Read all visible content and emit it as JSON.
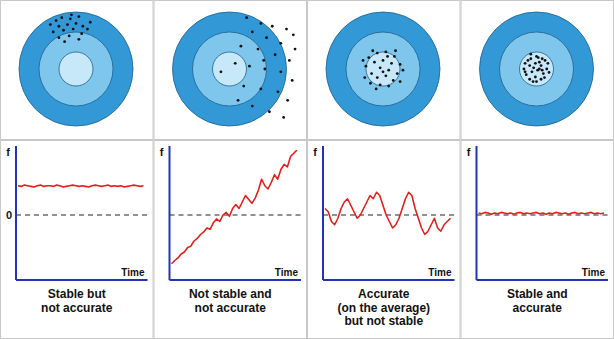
{
  "targets": [
    {
      "points": [
        [
          -0.35,
          0.85
        ],
        [
          -0.25,
          0.9
        ],
        [
          -0.1,
          0.88
        ],
        [
          0.05,
          0.92
        ],
        [
          -0.3,
          0.75
        ],
        [
          -0.15,
          0.78
        ],
        [
          0.0,
          0.8
        ],
        [
          0.12,
          0.75
        ],
        [
          -0.4,
          0.65
        ],
        [
          -0.22,
          0.68
        ],
        [
          -0.05,
          0.7
        ],
        [
          0.1,
          0.62
        ],
        [
          -0.3,
          0.55
        ],
        [
          -0.12,
          0.58
        ],
        [
          0.2,
          0.7
        ],
        [
          -0.2,
          0.48
        ],
        [
          0.05,
          0.52
        ],
        [
          -0.45,
          0.78
        ],
        [
          0.25,
          0.82
        ],
        [
          -0.08,
          0.95
        ]
      ]
    },
    {
      "points": [
        [
          0.3,
          0.9
        ],
        [
          0.55,
          0.8
        ],
        [
          0.75,
          0.75
        ],
        [
          1.0,
          0.7
        ],
        [
          1.12,
          0.6
        ],
        [
          0.4,
          0.65
        ],
        [
          0.65,
          0.55
        ],
        [
          0.9,
          0.45
        ],
        [
          1.15,
          0.35
        ],
        [
          0.2,
          0.4
        ],
        [
          0.5,
          0.35
        ],
        [
          0.8,
          0.25
        ],
        [
          1.05,
          0.15
        ],
        [
          0.1,
          0.1
        ],
        [
          0.35,
          0.05
        ],
        [
          0.62,
          0.0
        ],
        [
          0.9,
          -0.05
        ],
        [
          1.1,
          -0.2
        ],
        [
          -0.15,
          -0.05
        ],
        [
          0.25,
          -0.3
        ],
        [
          0.55,
          -0.35
        ],
        [
          0.85,
          -0.4
        ],
        [
          1.02,
          -0.55
        ],
        [
          0.4,
          -0.65
        ],
        [
          0.7,
          -0.75
        ],
        [
          0.95,
          -0.85
        ],
        [
          0.15,
          -0.55
        ],
        [
          0.6,
          0.15
        ]
      ]
    },
    {
      "points": [
        [
          -0.25,
          0.2
        ],
        [
          -0.1,
          0.28
        ],
        [
          0.05,
          0.3
        ],
        [
          0.2,
          0.22
        ],
        [
          0.3,
          0.08
        ],
        [
          -0.3,
          0.05
        ],
        [
          -0.15,
          0.12
        ],
        [
          0.0,
          0.15
        ],
        [
          0.15,
          0.1
        ],
        [
          -0.05,
          0.02
        ],
        [
          0.1,
          -0.02
        ],
        [
          0.25,
          -0.08
        ],
        [
          -0.2,
          -0.08
        ],
        [
          -0.32,
          -0.15
        ],
        [
          -0.1,
          -0.15
        ],
        [
          0.05,
          -0.12
        ],
        [
          0.18,
          -0.2
        ],
        [
          -0.22,
          -0.25
        ],
        [
          -0.05,
          -0.28
        ],
        [
          0.1,
          -0.3
        ],
        [
          0.3,
          -0.22
        ],
        [
          0.22,
          0.32
        ],
        [
          -0.18,
          0.32
        ],
        [
          0.35,
          -0.02
        ],
        [
          -0.35,
          0.15
        ],
        [
          0.0,
          -0.05
        ],
        [
          -0.12,
          -0.35
        ],
        [
          0.08,
          0.22
        ]
      ]
    },
    {
      "points": [
        [
          -0.2,
          0.1
        ],
        [
          -0.1,
          0.18
        ],
        [
          0.0,
          0.22
        ],
        [
          0.1,
          0.18
        ],
        [
          0.2,
          0.1
        ],
        [
          -0.22,
          0.0
        ],
        [
          -0.12,
          0.06
        ],
        [
          -0.02,
          0.1
        ],
        [
          0.08,
          0.06
        ],
        [
          0.18,
          0.0
        ],
        [
          -0.18,
          -0.1
        ],
        [
          -0.08,
          -0.05
        ],
        [
          0.02,
          -0.02
        ],
        [
          0.12,
          -0.08
        ],
        [
          0.22,
          -0.06
        ],
        [
          -0.12,
          -0.18
        ],
        [
          -0.02,
          -0.14
        ],
        [
          0.08,
          -0.18
        ],
        [
          0.0,
          -0.22
        ],
        [
          -0.05,
          0.02
        ],
        [
          0.05,
          0.12
        ],
        [
          0.14,
          -0.15
        ],
        [
          -0.15,
          0.15
        ],
        [
          0.15,
          0.15
        ],
        [
          -0.06,
          -0.22
        ],
        [
          0.05,
          0.0
        ],
        [
          -0.2,
          -0.05
        ],
        [
          0.1,
          -0.02
        ],
        [
          -0.1,
          0.26
        ],
        [
          0.03,
          0.2
        ]
      ]
    }
  ],
  "chart_data": [
    {
      "type": "line",
      "title": "Stable but\nnot accurate",
      "x_label": "Time",
      "y_label": "f",
      "color": "#e3201b",
      "ylim": [
        -1,
        1
      ],
      "yticks": [
        0
      ],
      "grid": true,
      "tick_labels": "y",
      "values": [
        0.45,
        0.44,
        0.46,
        0.45,
        0.44,
        0.43,
        0.45,
        0.46,
        0.44,
        0.45,
        0.45,
        0.44,
        0.46,
        0.45,
        0.43,
        0.44,
        0.45,
        0.46,
        0.45,
        0.44,
        0.45,
        0.44,
        0.43,
        0.45,
        0.46,
        0.45,
        0.44,
        0.45,
        0.46,
        0.44,
        0.45,
        0.44,
        0.45,
        0.43,
        0.44,
        0.45,
        0.46,
        0.45,
        0.44,
        0.45
      ]
    },
    {
      "type": "line",
      "title": "Not stable and\nnot accurate",
      "x_label": "Time",
      "y_label": "f",
      "color": "#e3201b",
      "ylim": [
        -1,
        1
      ],
      "yticks": [
        0
      ],
      "grid": true,
      "tick_labels": false,
      "values": [
        -0.75,
        -0.7,
        -0.66,
        -0.6,
        -0.57,
        -0.5,
        -0.48,
        -0.4,
        -0.36,
        -0.3,
        -0.26,
        -0.2,
        -0.22,
        -0.12,
        -0.06,
        -0.1,
        0.0,
        0.04,
        -0.02,
        0.1,
        0.16,
        0.1,
        0.2,
        0.3,
        0.24,
        0.18,
        0.26,
        0.38,
        0.55,
        0.45,
        0.4,
        0.5,
        0.62,
        0.55,
        0.7,
        0.78,
        0.74,
        0.9,
        0.95,
        1.0
      ]
    },
    {
      "type": "line",
      "title": "Accurate\n(on the average)\nbut not stable",
      "x_label": "Time",
      "y_label": "f",
      "color": "#e3201b",
      "ylim": [
        -1,
        1
      ],
      "yticks": [
        0
      ],
      "grid": true,
      "tick_labels": false,
      "values": [
        0.1,
        0.05,
        -0.1,
        -0.15,
        -0.05,
        0.1,
        0.2,
        0.25,
        0.15,
        0.05,
        -0.05,
        0.0,
        0.1,
        0.2,
        0.3,
        0.25,
        0.35,
        0.3,
        0.15,
        0.0,
        -0.1,
        -0.2,
        -0.15,
        -0.05,
        0.1,
        0.25,
        0.35,
        0.3,
        0.1,
        -0.05,
        -0.2,
        -0.3,
        -0.25,
        -0.15,
        -0.05,
        -0.2,
        -0.25,
        -0.15,
        -0.1,
        -0.05
      ]
    },
    {
      "type": "line",
      "title": "Stable and\naccurate",
      "x_label": "Time",
      "y_label": "f",
      "color": "#e3201b",
      "ylim": [
        -1,
        1
      ],
      "yticks": [
        0
      ],
      "grid": true,
      "tick_labels": false,
      "values": [
        0.03,
        0.02,
        0.04,
        0.03,
        0.01,
        0.03,
        0.02,
        0.04,
        0.03,
        0.02,
        0.03,
        0.01,
        0.03,
        0.04,
        0.02,
        0.03,
        0.02,
        0.03,
        0.04,
        0.02,
        0.03,
        0.01,
        0.03,
        0.02,
        0.04,
        0.03,
        0.02,
        0.03,
        0.01,
        0.03,
        0.04,
        0.02,
        0.03,
        0.02,
        0.03,
        0.04,
        0.02,
        0.03,
        0.02,
        0.03
      ]
    }
  ]
}
